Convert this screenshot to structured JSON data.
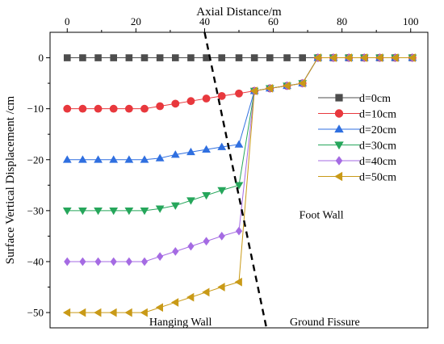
{
  "chart_data": {
    "type": "line",
    "xlabel": "Axial Distance/m",
    "ylabel": "Surface Vertical Displacement /cm",
    "xlim": [
      -5,
      105
    ],
    "ylim": [
      -53,
      5
    ],
    "x_ticks": [
      0,
      20,
      40,
      60,
      80,
      100
    ],
    "y_ticks": [
      0,
      -10,
      -20,
      -30,
      -40,
      -50
    ],
    "x_axis_position": "top",
    "grid": false,
    "legend_position": "right",
    "x": [
      0,
      4.5,
      9,
      13.5,
      18,
      22.5,
      27,
      31.5,
      36,
      40.5,
      45,
      50,
      54.5,
      59,
      64,
      68.5,
      73,
      77.5,
      82,
      86.5,
      91,
      95.5,
      100.5
    ],
    "series": [
      {
        "name": "d=0cm",
        "color": "#4d4d4d",
        "marker": "square",
        "values": [
          0,
          0,
          0,
          0,
          0,
          0,
          0,
          0,
          0,
          0,
          0,
          0,
          0,
          0,
          0,
          0,
          0,
          0,
          0,
          0,
          0,
          0,
          0
        ]
      },
      {
        "name": "d=10cm",
        "color": "#e8383d",
        "marker": "circle",
        "values": [
          -10,
          -10,
          -10,
          -10,
          -10,
          -10,
          -9.5,
          -9,
          -8.5,
          -8,
          -7.5,
          -7,
          -6.5,
          -6,
          -5.5,
          -5,
          0,
          0,
          0,
          0,
          0,
          0,
          0
        ]
      },
      {
        "name": "d=20cm",
        "color": "#2f6fe0",
        "marker": "triangle-up",
        "values": [
          -20,
          -20,
          -20,
          -20,
          -20,
          -20,
          -19.7,
          -19,
          -18.5,
          -18,
          -17.5,
          -17,
          -6.5,
          -6,
          -5.5,
          -5,
          0,
          0,
          0,
          0,
          0,
          0,
          0
        ]
      },
      {
        "name": "d=30cm",
        "color": "#26a65b",
        "marker": "triangle-down",
        "values": [
          -30,
          -30,
          -30,
          -30,
          -30,
          -30,
          -29.6,
          -29,
          -28,
          -27,
          -26,
          -25,
          -6.5,
          -6,
          -5.5,
          -5,
          0,
          0,
          0,
          0,
          0,
          0,
          0
        ]
      },
      {
        "name": "d=40cm",
        "color": "#a56be3",
        "marker": "diamond",
        "values": [
          -40,
          -40,
          -40,
          -40,
          -40,
          -40,
          -39,
          -38,
          -37,
          -36,
          -35,
          -34,
          -6.5,
          -6,
          -5.5,
          -5,
          0,
          0,
          0,
          0,
          0,
          0,
          0
        ]
      },
      {
        "name": "d=50cm",
        "color": "#c99a17",
        "marker": "triangle-left",
        "values": [
          -50,
          -50,
          -50,
          -50,
          -50,
          -50,
          -49,
          -48,
          -47,
          -46,
          -45,
          -44,
          -6.5,
          -6,
          -5.5,
          -5,
          0,
          0,
          0,
          0,
          0,
          0,
          0
        ]
      }
    ],
    "fissure_line": {
      "x": [
        40,
        58
      ],
      "y": [
        5,
        -53
      ],
      "style": "dashed"
    },
    "annotations": [
      {
        "text": "Foot Wall",
        "x": 74,
        "y": -31.5
      },
      {
        "text": "Hanging Wall",
        "x": 33,
        "y": -52.5
      },
      {
        "text": "Ground Fissure",
        "x": 75,
        "y": -52.5
      }
    ]
  }
}
